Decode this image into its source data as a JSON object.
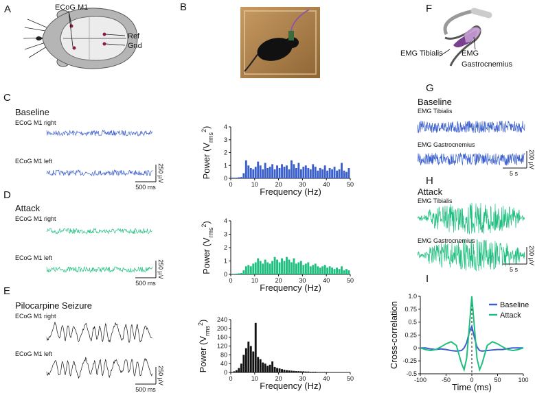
{
  "panel_labels": [
    "A",
    "B",
    "C",
    "D",
    "E",
    "F",
    "G",
    "H",
    "I"
  ],
  "panel_a": {
    "labels": [
      "ECoG M1",
      "Ref",
      "Gnd"
    ]
  },
  "panel_f": {
    "labels": [
      "EMG Tibialis",
      "EMG",
      "Gastrocnemius"
    ]
  },
  "panel_c": {
    "title": "Baseline",
    "traces": [
      "ECoG M1 right",
      "ECoG M1 left"
    ],
    "scale_y": "250 µV",
    "scale_x": "500 ms"
  },
  "panel_d": {
    "title": "Attack",
    "traces": [
      "ECoG M1 right",
      "ECoG M1 left"
    ],
    "scale_y": "250 µV",
    "scale_x": "500 ms"
  },
  "panel_e": {
    "title": "Pilocarpine Seizure",
    "traces": [
      "ECoG M1 right",
      "ECoG M1 left"
    ],
    "scale_y": "250 µV",
    "scale_x": "500 ms"
  },
  "panel_g": {
    "title": "Baseline",
    "traces": [
      "EMG Tibialis",
      "EMG Gastrocnemius"
    ],
    "scale_y": "200 µV",
    "scale_x": "5 s"
  },
  "panel_h": {
    "title": "Attack",
    "traces": [
      "EMG Tibialis",
      "EMG Gastrocnemius"
    ],
    "scale_y": "200 µV",
    "scale_x": "5 s"
  },
  "chart_data": [
    {
      "type": "bar",
      "color": "#3a5fcd",
      "xlabel": "Frequency (Hz)",
      "ylabel": [
        "Power (V",
        "rms",
        "2",
        ")"
      ],
      "x": [
        0,
        1,
        2,
        3,
        4,
        5,
        6,
        7,
        8,
        9,
        10,
        11,
        12,
        13,
        14,
        15,
        16,
        17,
        18,
        19,
        20,
        21,
        22,
        23,
        24,
        25,
        26,
        27,
        28,
        29,
        30,
        31,
        32,
        33,
        34,
        35,
        36,
        37,
        38,
        39,
        40,
        41,
        42,
        43,
        44,
        45,
        46,
        47,
        48,
        49
      ],
      "values": [
        0.05,
        0.05,
        0.05,
        0.08,
        0.1,
        0.4,
        1.4,
        1.0,
        0.8,
        0.7,
        0.9,
        1.3,
        1.0,
        0.7,
        1.2,
        0.8,
        0.9,
        1.1,
        0.7,
        1.0,
        0.8,
        1.1,
        0.9,
        1.0,
        0.7,
        1.4,
        1.1,
        0.8,
        1.2,
        0.7,
        0.9,
        1.0,
        0.8,
        0.7,
        1.1,
        0.9,
        0.6,
        0.8,
        0.7,
        1.0,
        0.6,
        0.8,
        0.7,
        0.9,
        0.6,
        0.7,
        1.2,
        0.6,
        0.5,
        0.8
      ],
      "xlim": [
        0,
        50
      ],
      "xticks": [
        0,
        10,
        20,
        30,
        40,
        50
      ],
      "ylim": [
        0,
        4
      ],
      "yticks": [
        0,
        1,
        2,
        3,
        4
      ]
    },
    {
      "type": "bar",
      "color": "#1fbf7f",
      "xlabel": "Frequency (Hz)",
      "ylabel": [
        "Power (V",
        "rms",
        "2",
        ")"
      ],
      "x": [
        0,
        1,
        2,
        3,
        4,
        5,
        6,
        7,
        8,
        9,
        10,
        11,
        12,
        13,
        14,
        15,
        16,
        17,
        18,
        19,
        20,
        21,
        22,
        23,
        24,
        25,
        26,
        27,
        28,
        29,
        30,
        31,
        32,
        33,
        34,
        35,
        36,
        37,
        38,
        39,
        40,
        41,
        42,
        43,
        44,
        45,
        46,
        47,
        48,
        49
      ],
      "values": [
        0.02,
        0.03,
        0.05,
        0.08,
        0.1,
        0.3,
        0.6,
        0.7,
        0.6,
        0.8,
        0.9,
        1.2,
        1.0,
        0.8,
        1.1,
        0.9,
        0.8,
        1.0,
        1.3,
        1.1,
        0.9,
        1.2,
        1.0,
        1.3,
        1.1,
        0.9,
        1.2,
        0.8,
        0.9,
        1.0,
        0.7,
        0.8,
        0.9,
        0.6,
        0.7,
        0.8,
        0.6,
        0.5,
        0.6,
        0.7,
        0.5,
        0.6,
        0.5,
        0.4,
        0.5,
        0.4,
        0.6,
        0.3,
        0.4,
        0.3
      ],
      "xlim": [
        0,
        50
      ],
      "xticks": [
        0,
        10,
        20,
        30,
        40,
        50
      ],
      "ylim": [
        0,
        4
      ],
      "yticks": [
        0,
        1,
        2,
        3,
        4
      ]
    },
    {
      "type": "bar",
      "color": "#111111",
      "xlabel": "Frequency (Hz)",
      "ylabel": [
        "Power (V",
        "rms",
        "2",
        ")"
      ],
      "x": [
        0,
        1,
        2,
        3,
        4,
        5,
        6,
        7,
        8,
        9,
        10,
        11,
        12,
        13,
        14,
        15,
        16,
        17,
        18,
        19,
        20,
        21,
        22,
        23,
        24,
        25,
        26,
        27,
        28,
        29,
        30,
        31,
        32,
        33,
        34,
        35,
        36,
        37,
        38,
        39,
        40,
        41,
        42,
        43,
        44,
        45,
        46,
        47,
        48,
        49
      ],
      "values": [
        2,
        5,
        10,
        20,
        40,
        80,
        110,
        140,
        120,
        95,
        225,
        70,
        60,
        45,
        40,
        30,
        35,
        50,
        25,
        20,
        18,
        15,
        12,
        10,
        9,
        8,
        7,
        6,
        6,
        5,
        5,
        4,
        4,
        3,
        3,
        3,
        2,
        2,
        2,
        2,
        2,
        1,
        1,
        1,
        1,
        1,
        1,
        1,
        1,
        1
      ],
      "xlim": [
        0,
        50
      ],
      "xticks": [
        0,
        10,
        20,
        30,
        40,
        50
      ],
      "ylim": [
        0,
        240
      ],
      "yticks": [
        0,
        40,
        80,
        120,
        160,
        200,
        240
      ]
    },
    {
      "type": "line",
      "xlabel": "Time (ms)",
      "ylabel": "Cross-correlation",
      "legend": "upper right",
      "vline": 0,
      "x": [
        -100,
        -90,
        -80,
        -70,
        -60,
        -50,
        -40,
        -30,
        -20,
        -15,
        -10,
        -5,
        0,
        5,
        10,
        15,
        20,
        30,
        40,
        50,
        60,
        70,
        80,
        90,
        100
      ],
      "series": [
        {
          "name": "Baseline",
          "color": "#3a5fcd",
          "values": [
            0,
            0,
            -0.02,
            -0.03,
            -0.02,
            -0.03,
            -0.05,
            -0.06,
            -0.05,
            0,
            0.1,
            0.3,
            0.42,
            0.2,
            0.02,
            -0.05,
            -0.06,
            -0.05,
            -0.04,
            -0.03,
            -0.03,
            -0.01,
            0,
            0,
            0
          ]
        },
        {
          "name": "Attack",
          "color": "#1fbf7f",
          "values": [
            0,
            -0.03,
            -0.05,
            -0.03,
            0.02,
            0.08,
            0.12,
            0.05,
            -0.3,
            -0.42,
            -0.2,
            0.4,
            1.0,
            0.4,
            -0.2,
            -0.42,
            -0.3,
            0.05,
            0.12,
            0.08,
            0.02,
            -0.03,
            -0.05,
            -0.03,
            0
          ]
        }
      ],
      "xlim": [
        -100,
        100
      ],
      "xticks": [
        -100,
        -50,
        0,
        50,
        100
      ],
      "ylim": [
        -0.5,
        1.0
      ],
      "yticks": [
        -0.5,
        -0.25,
        0,
        0.25,
        0.5,
        0.75,
        {
          "value": 1.0,
          "label": "1.0"
        }
      ]
    }
  ]
}
